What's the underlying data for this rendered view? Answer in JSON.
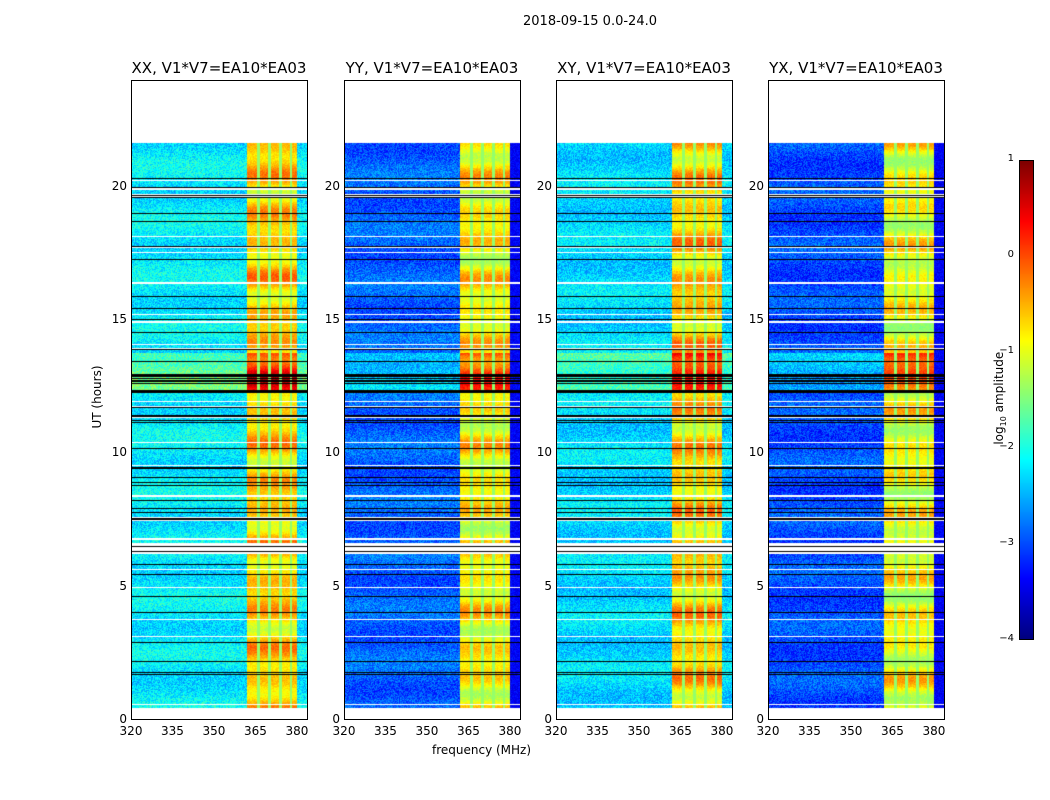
{
  "chart_data": {
    "type": "heatmap",
    "title": "2018-09-15 0.0-24.0",
    "xlabel": "frequency (MHz)",
    "ylabel": "UT (hours)",
    "xlim": [
      320,
      384
    ],
    "ylim": [
      0,
      24
    ],
    "xticks": [
      "320",
      "335",
      "350",
      "365",
      "380"
    ],
    "xtick_values": [
      320,
      335,
      350,
      365,
      380
    ],
    "yticks": [
      "0",
      "5",
      "10",
      "15",
      "20"
    ],
    "ytick_values": [
      0,
      5,
      10,
      15,
      20
    ],
    "panels": [
      {
        "title": "XX, V1*V7=EA10*EA03",
        "base_log_amp": -2.2,
        "band_log_amp": -0.6
      },
      {
        "title": "YY, V1*V7=EA10*EA03",
        "base_log_amp": -2.9,
        "band_log_amp": -0.8
      },
      {
        "title": "XY, V1*V7=EA10*EA03",
        "base_log_amp": -2.3,
        "band_log_amp": -0.6
      },
      {
        "title": "YX, V1*V7=EA10*EA03",
        "base_log_amp": -3.0,
        "band_log_amp": -0.9
      }
    ],
    "data_time_range": [
      0.5,
      21.7
    ],
    "bright_band_MHz": [
      362,
      380
    ],
    "colorbar": {
      "label": "log10 amplitude",
      "range": [
        -4,
        1
      ],
      "ticks": [
        "1",
        "0",
        "−1",
        "−2",
        "−3",
        "−4"
      ],
      "tick_values": [
        1,
        0,
        -1,
        -2,
        -3,
        -4
      ],
      "colormap": "jet"
    }
  }
}
